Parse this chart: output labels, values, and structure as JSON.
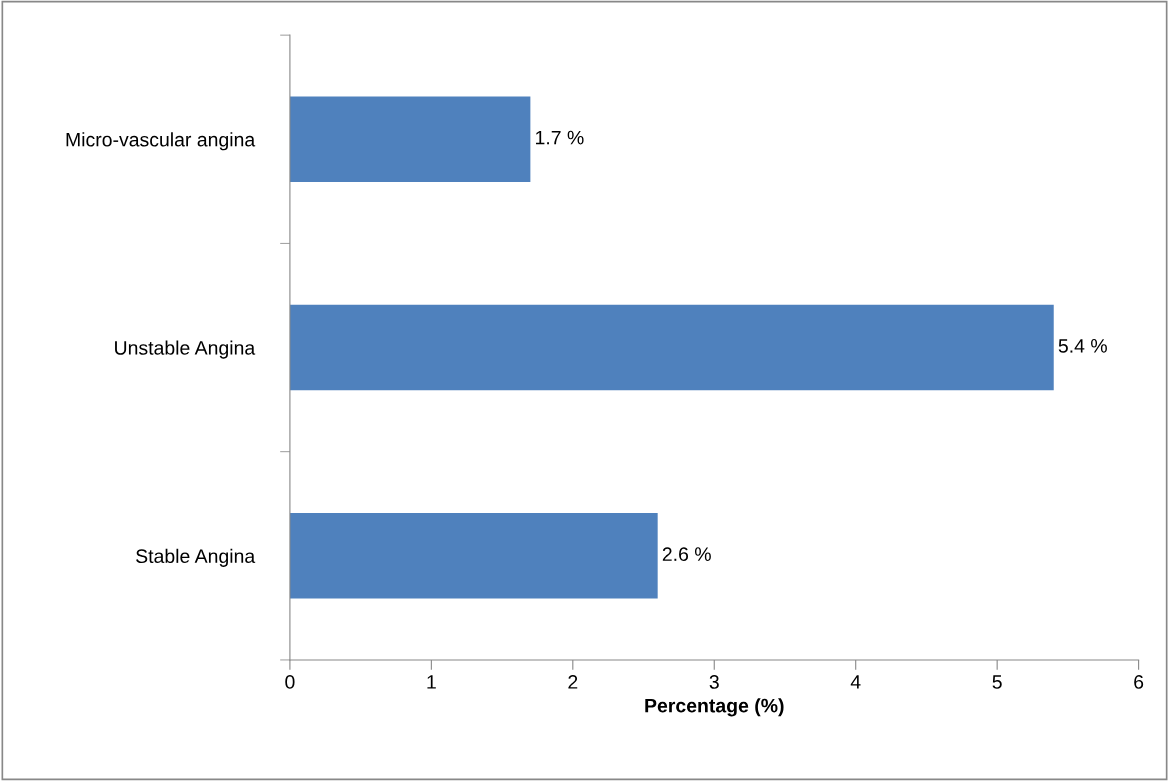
{
  "chart_data": {
    "type": "bar",
    "orientation": "horizontal",
    "xlabel": "Percentage (%)",
    "categories": [
      "Micro-vascular angina",
      "Unstable Angina",
      "Stable Angina"
    ],
    "values": [
      1.7,
      5.4,
      2.6
    ],
    "value_labels": [
      "1.7 %",
      "5.4 %",
      "2.6 %"
    ],
    "color": "#4f81bd",
    "xlim": [
      0,
      6
    ],
    "xticks": [
      0,
      1,
      2,
      3,
      4,
      5,
      6
    ],
    "grid": false,
    "legend": false
  }
}
